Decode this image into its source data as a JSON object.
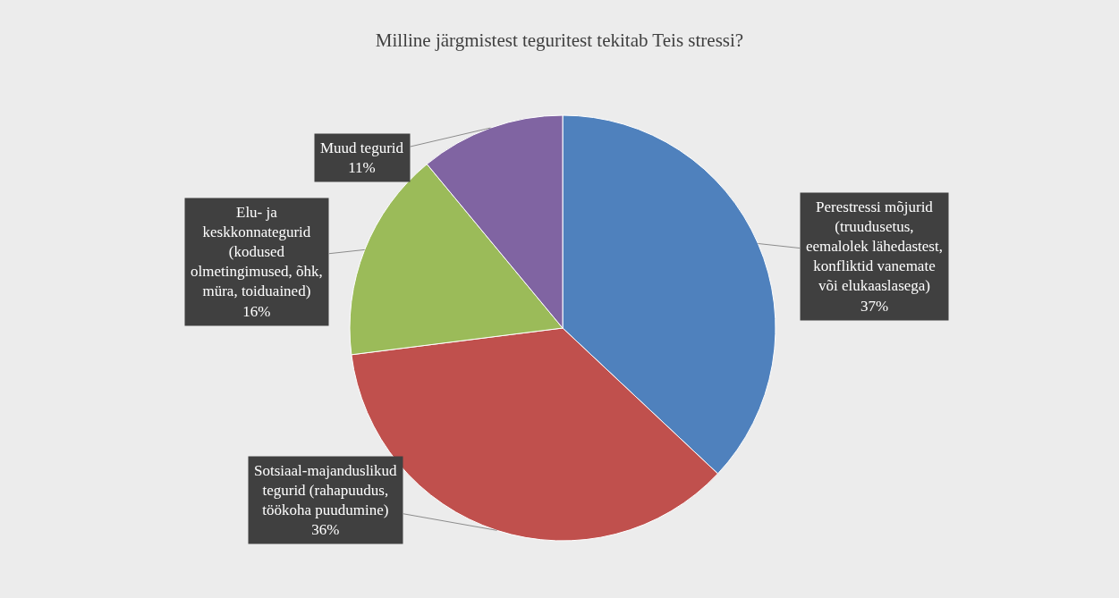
{
  "chart_data": {
    "type": "pie",
    "title": "Milline järgmistest teguritest tekitab Teis stressi?",
    "categories": [
      "Perestressi mõjurid (truudusetus, eemalolek lähedastest, konfliktid vanemate või elukaaslasega)",
      "Sotsiaal-majanduslikud tegurid (rahapuudus, töökoha puudumine)",
      "Elu- ja keskkonnategurid (kodused olmetingimused, õhk, müra, toiduained)",
      "Muud tegurid"
    ],
    "values": [
      37,
      36,
      16,
      11
    ],
    "value_labels": [
      "37%",
      "36%",
      "16%",
      "11%"
    ],
    "colors": [
      "#4f81bd",
      "#c0504d",
      "#9bbb59",
      "#8064a2"
    ],
    "legend": false
  }
}
